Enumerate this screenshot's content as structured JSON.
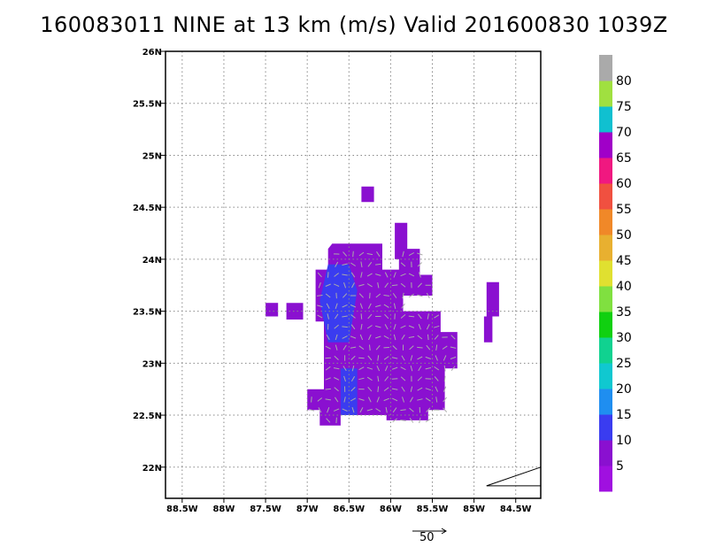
{
  "title": "160083011 NINE at 13 km (m/s) Valid 201600830 1039Z",
  "map": {
    "lon_range": [
      -88.7,
      -84.2
    ],
    "lat_range": [
      21.7,
      26.0
    ],
    "x_ticks": [
      {
        "value": -88.5,
        "label": "88.5W"
      },
      {
        "value": -88.0,
        "label": "88W"
      },
      {
        "value": -87.5,
        "label": "87.5W"
      },
      {
        "value": -87.0,
        "label": "87W"
      },
      {
        "value": -86.5,
        "label": "86.5W"
      },
      {
        "value": -86.0,
        "label": "86W"
      },
      {
        "value": -85.5,
        "label": "85.5W"
      },
      {
        "value": -85.0,
        "label": "85W"
      },
      {
        "value": -84.5,
        "label": "84.5W"
      }
    ],
    "y_ticks": [
      {
        "value": 22.0,
        "label": "22N"
      },
      {
        "value": 22.5,
        "label": "22.5N"
      },
      {
        "value": 23.0,
        "label": "23N"
      },
      {
        "value": 23.5,
        "label": "23.5N"
      },
      {
        "value": 24.0,
        "label": "24N"
      },
      {
        "value": 24.5,
        "label": "24.5N"
      },
      {
        "value": 25.0,
        "label": "25N"
      },
      {
        "value": 25.5,
        "label": "25.5N"
      },
      {
        "value": 26.0,
        "label": "26N"
      }
    ],
    "grid": "dotted",
    "coast_segments": [
      [
        [
          -84.85,
          21.82
        ],
        [
          -84.2,
          22.0
        ]
      ],
      [
        [
          -84.85,
          21.82
        ],
        [
          -84.2,
          21.82
        ]
      ]
    ],
    "wind_field": {
      "dominant_color": "#8a10d0",
      "blobs": [
        {
          "polygon": [
            [
              -86.7,
              24.15
            ],
            [
              -86.1,
              24.15
            ],
            [
              -86.1,
              23.9
            ],
            [
              -85.9,
              23.9
            ],
            [
              -85.9,
              24.1
            ],
            [
              -85.65,
              24.1
            ],
            [
              -85.65,
              23.85
            ],
            [
              -85.5,
              23.85
            ],
            [
              -85.5,
              23.65
            ],
            [
              -85.85,
              23.65
            ],
            [
              -85.85,
              23.5
            ],
            [
              -85.4,
              23.5
            ],
            [
              -85.4,
              23.3
            ],
            [
              -85.2,
              23.3
            ],
            [
              -85.2,
              22.95
            ],
            [
              -85.35,
              22.95
            ],
            [
              -85.35,
              22.55
            ],
            [
              -85.55,
              22.55
            ],
            [
              -85.55,
              22.45
            ],
            [
              -86.05,
              22.45
            ],
            [
              -86.05,
              22.5
            ],
            [
              -86.6,
              22.5
            ],
            [
              -86.6,
              22.4
            ],
            [
              -86.85,
              22.4
            ],
            [
              -86.85,
              22.55
            ],
            [
              -87.0,
              22.55
            ],
            [
              -87.0,
              22.75
            ],
            [
              -86.8,
              22.75
            ],
            [
              -86.8,
              23.4
            ],
            [
              -86.9,
              23.4
            ],
            [
              -86.9,
              23.9
            ],
            [
              -86.75,
              23.9
            ],
            [
              -86.75,
              24.1
            ]
          ],
          "color": "#8a10d0"
        },
        {
          "polygon": [
            [
              -86.75,
              23.95
            ],
            [
              -86.5,
              23.95
            ],
            [
              -86.4,
              23.7
            ],
            [
              -86.5,
              23.2
            ],
            [
              -86.75,
              23.2
            ],
            [
              -86.85,
              23.6
            ]
          ],
          "color": "#3a3cf0"
        },
        {
          "polygon": [
            [
              -86.6,
              22.95
            ],
            [
              -86.4,
              22.95
            ],
            [
              -86.4,
              22.5
            ],
            [
              -86.6,
              22.5
            ]
          ],
          "color": "#3a3cf0"
        },
        {
          "polygon": [
            [
              -86.35,
              24.7
            ],
            [
              -86.2,
              24.7
            ],
            [
              -86.2,
              24.55
            ],
            [
              -86.35,
              24.55
            ]
          ],
          "color": "#8a10d0"
        },
        {
          "polygon": [
            [
              -85.95,
              24.35
            ],
            [
              -85.8,
              24.35
            ],
            [
              -85.8,
              24.0
            ],
            [
              -85.95,
              24.0
            ]
          ],
          "color": "#8a10d0"
        },
        {
          "polygon": [
            [
              -87.5,
              23.58
            ],
            [
              -87.35,
              23.58
            ],
            [
              -87.35,
              23.45
            ],
            [
              -87.5,
              23.45
            ]
          ],
          "color": "#8a10d0"
        },
        {
          "polygon": [
            [
              -87.25,
              23.58
            ],
            [
              -87.05,
              23.58
            ],
            [
              -87.05,
              23.42
            ],
            [
              -87.25,
              23.42
            ]
          ],
          "color": "#8a10d0"
        },
        {
          "polygon": [
            [
              -84.85,
              23.78
            ],
            [
              -84.7,
              23.78
            ],
            [
              -84.7,
              23.45
            ],
            [
              -84.78,
              23.45
            ],
            [
              -84.78,
              23.2
            ],
            [
              -84.88,
              23.2
            ],
            [
              -84.88,
              23.45
            ],
            [
              -84.85,
              23.45
            ]
          ],
          "color": "#8a10d0"
        }
      ],
      "arrow_color": "#aaaaaa"
    },
    "reference_vector": {
      "label": "50"
    }
  },
  "colorbar": {
    "segments": [
      {
        "color": "#a010e0"
      },
      {
        "color": "#8a10d0"
      },
      {
        "color": "#3a3cf0"
      },
      {
        "color": "#1f8ef0"
      },
      {
        "color": "#10c8d0"
      },
      {
        "color": "#10d290"
      },
      {
        "color": "#10d010"
      },
      {
        "color": "#80e040"
      },
      {
        "color": "#e0e030"
      },
      {
        "color": "#e8b030"
      },
      {
        "color": "#f08828"
      },
      {
        "color": "#f05040"
      },
      {
        "color": "#f01880"
      },
      {
        "color": "#a000c8"
      },
      {
        "color": "#10c0d0"
      },
      {
        "color": "#a0e040"
      },
      {
        "color": "#aaaaaa"
      }
    ],
    "labels": [
      "5",
      "10",
      "15",
      "20",
      "25",
      "30",
      "35",
      "40",
      "45",
      "50",
      "55",
      "60",
      "65",
      "70",
      "75",
      "80"
    ]
  }
}
